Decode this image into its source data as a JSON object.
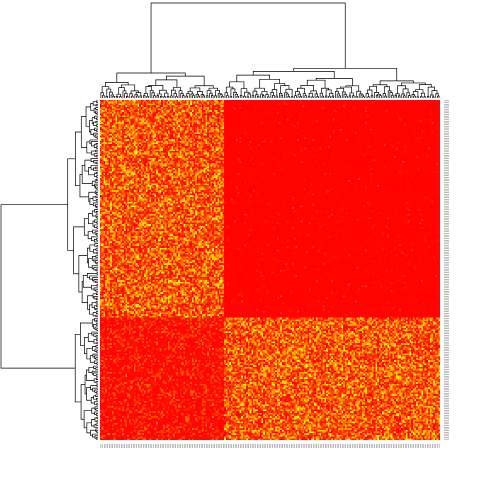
{
  "chart_data": {
    "type": "heatmap",
    "title": "",
    "xlabel": "",
    "ylabel": "",
    "n_rows": 200,
    "n_cols": 200,
    "colormap": [
      "#ff0000",
      "#ff4000",
      "#ff8000",
      "#ffbf00",
      "#ffff33"
    ],
    "value_range": [
      0,
      1
    ],
    "row_labels_visible": false,
    "col_labels_visible": false,
    "legend": "none",
    "blocks": [
      {
        "rows": [
          0,
          128
        ],
        "cols": [
          0,
          73
        ],
        "pattern": "high-variance",
        "mean": 0.42
      },
      {
        "rows": [
          0,
          128
        ],
        "cols": [
          73,
          200
        ],
        "pattern": "low-uniform",
        "mean": 0.03
      },
      {
        "rows": [
          128,
          200
        ],
        "cols": [
          0,
          73
        ],
        "pattern": "low-mixed",
        "mean": 0.09
      },
      {
        "rows": [
          128,
          200
        ],
        "cols": [
          73,
          200
        ],
        "pattern": "high-variance",
        "mean": 0.34
      }
    ],
    "row_dendrogram": {
      "position": "left",
      "top_split": [
        128,
        72
      ]
    },
    "col_dendrogram": {
      "position": "top",
      "top_split": [
        73,
        127
      ]
    }
  }
}
